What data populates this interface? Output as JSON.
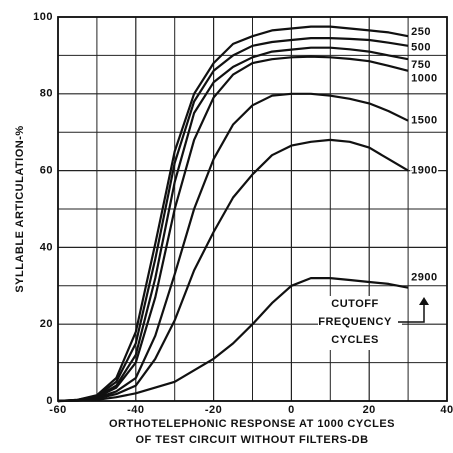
{
  "chart_data": {
    "type": "line",
    "ylabel": "SYLLABLE ARTICULATION-%",
    "xlabel": [
      "ORTHOTELEPHONIC RESPONSE AT 1000 CYCLES",
      "OF TEST CIRCUIT WITHOUT FILTERS-DB"
    ],
    "annotation": [
      "CUTOFF",
      "FREQUENCY",
      "CYCLES"
    ],
    "x": [
      -60,
      -55,
      -50,
      -45,
      -40,
      -35,
      -30,
      -25,
      -20,
      -15,
      -10,
      -5,
      0,
      5,
      10,
      15,
      20,
      25,
      30
    ],
    "series": [
      {
        "name": "250",
        "color": "#111111",
        "values": [
          0,
          0.3,
          1.5,
          6,
          18,
          41,
          65,
          80,
          88,
          93,
          95,
          96.5,
          97,
          97.5,
          97.5,
          97,
          96.5,
          96,
          95
        ]
      },
      {
        "name": "500",
        "color": "#111111",
        "values": [
          0,
          0.3,
          1.3,
          5,
          15,
          37,
          62,
          78,
          86,
          90,
          92.5,
          93.5,
          94,
          94.5,
          94.5,
          94.3,
          94,
          93.3,
          92.5
        ]
      },
      {
        "name": "750",
        "color": "#111111",
        "values": [
          0,
          0.2,
          1.1,
          4,
          12,
          32,
          57,
          75,
          83,
          87,
          89.5,
          91,
          91.5,
          92,
          92,
          91.6,
          91,
          90,
          89
        ]
      },
      {
        "name": "1000",
        "color": "#111111",
        "values": [
          0,
          0.2,
          1,
          3.5,
          10,
          27,
          50,
          68,
          79,
          85,
          88,
          89,
          89.5,
          89.7,
          89.5,
          89.1,
          88.5,
          87.3,
          86
        ]
      },
      {
        "name": "1500",
        "color": "#111111",
        "values": [
          0,
          0.2,
          0.8,
          2.5,
          6,
          17,
          33,
          50,
          63,
          72,
          77,
          79.5,
          80,
          80,
          79.5,
          78.7,
          77.5,
          75.5,
          73
        ]
      },
      {
        "name": "1900",
        "color": "#111111",
        "values": [
          0,
          0.1,
          0.6,
          1.8,
          4,
          11,
          21,
          34,
          44,
          53,
          59,
          64,
          66.5,
          67.5,
          68,
          67.5,
          66,
          63,
          60
        ]
      },
      {
        "name": "2900",
        "color": "#111111",
        "values": [
          0,
          0.1,
          0.3,
          1,
          2,
          3.5,
          5,
          8,
          11,
          15,
          20,
          25.5,
          30,
          32,
          32,
          31.5,
          31,
          30.5,
          29.5
        ]
      }
    ],
    "xlim": [
      -60,
      40
    ],
    "ylim": [
      0,
      100
    ],
    "xticks": [
      -60,
      -40,
      -20,
      0,
      20,
      40
    ],
    "yticks": [
      0,
      20,
      40,
      60,
      80,
      100
    ],
    "grid": true
  }
}
